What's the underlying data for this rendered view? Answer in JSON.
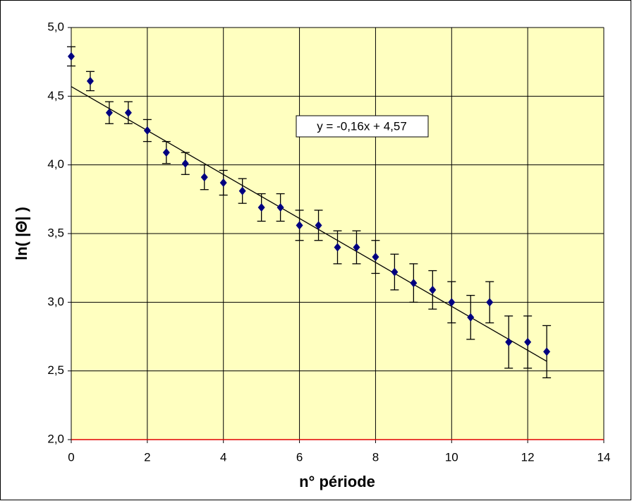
{
  "chart_data": {
    "type": "scatter",
    "x_label": "n° période",
    "y_label": "ln( |Θ| )",
    "x": [
      0,
      0.5,
      1,
      1.5,
      2,
      2.5,
      3,
      3.5,
      4,
      4.5,
      5,
      5.5,
      6,
      6.5,
      7,
      7.5,
      8,
      8.5,
      9,
      9.5,
      10,
      10.5,
      11,
      11.5,
      12,
      12.5
    ],
    "values": [
      4.79,
      4.61,
      4.38,
      4.38,
      4.25,
      4.09,
      4.01,
      3.91,
      3.87,
      3.81,
      3.69,
      3.69,
      3.56,
      3.56,
      3.4,
      3.4,
      3.33,
      3.22,
      3.14,
      3.09,
      3.0,
      2.89,
      3.0,
      2.71,
      2.71,
      2.64
    ],
    "errors": [
      0.07,
      0.07,
      0.08,
      0.08,
      0.08,
      0.08,
      0.08,
      0.09,
      0.09,
      0.09,
      0.1,
      0.1,
      0.11,
      0.11,
      0.12,
      0.12,
      0.12,
      0.13,
      0.14,
      0.14,
      0.15,
      0.16,
      0.15,
      0.19,
      0.19,
      0.19
    ],
    "color": "#000080",
    "trendline": {
      "label": "y = -0,16x + 4,57",
      "slope": -0.16,
      "intercept": 4.57
    },
    "xlim": [
      0,
      14
    ],
    "xticks": [
      0,
      2,
      4,
      6,
      8,
      10,
      12,
      14
    ],
    "ylim": [
      2,
      5
    ],
    "yticks": [
      {
        "value": 2,
        "label": "2,0"
      },
      {
        "value": 2.5,
        "label": "2,5"
      },
      {
        "value": 3,
        "label": "3,0"
      },
      {
        "value": 3.5,
        "label": "3,5"
      },
      {
        "value": 4,
        "label": "4,0"
      },
      {
        "value": 4.5,
        "label": "4,5"
      },
      {
        "value": 5,
        "label": "5,0"
      }
    ],
    "grid": true,
    "plot_background": "#ffffc0"
  }
}
